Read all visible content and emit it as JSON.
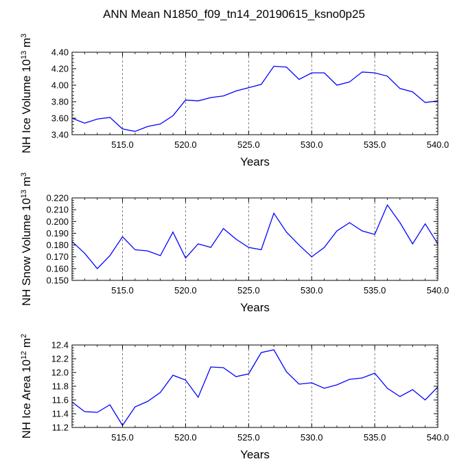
{
  "title": "ANN Mean N1850_f09_tn14_20190615_ksno0p25",
  "colors": {
    "series": "#0000ff",
    "axes": "#000000",
    "grid": "#555555"
  },
  "chart_data": [
    {
      "type": "line",
      "ylabel": {
        "text": "NH Ice Volume 10",
        "exp": "13",
        "unit": " m",
        "unit_exp": "3"
      },
      "xlabel": "Years",
      "x": [
        511,
        512,
        513,
        514,
        515,
        516,
        517,
        518,
        519,
        520,
        521,
        522,
        523,
        524,
        525,
        526,
        527,
        528,
        529,
        530,
        531,
        532,
        533,
        534,
        535,
        536,
        537,
        538,
        539,
        540
      ],
      "values": [
        3.6,
        3.54,
        3.59,
        3.61,
        3.47,
        3.44,
        3.5,
        3.53,
        3.63,
        3.82,
        3.81,
        3.85,
        3.87,
        3.93,
        3.97,
        4.01,
        4.23,
        4.22,
        4.07,
        4.15,
        4.15,
        4.0,
        4.04,
        4.16,
        4.15,
        4.11,
        3.96,
        3.92,
        3.79,
        3.81
      ],
      "xlim": [
        511,
        540
      ],
      "ylim": [
        3.4,
        4.4
      ],
      "yticks": [
        "3.40",
        "3.60",
        "3.80",
        "4.00",
        "4.20",
        "4.40"
      ],
      "xticks": [
        "515.0",
        "520.0",
        "525.0",
        "530.0",
        "535.0",
        "540.0"
      ],
      "grid_x": [
        515,
        520,
        525,
        530,
        535
      ]
    },
    {
      "type": "line",
      "ylabel": {
        "text": "NH Snow Volume 10",
        "exp": "13",
        "unit": " m",
        "unit_exp": "3"
      },
      "xlabel": "Years",
      "x": [
        511,
        512,
        513,
        514,
        515,
        516,
        517,
        518,
        519,
        520,
        521,
        522,
        523,
        524,
        525,
        526,
        527,
        528,
        529,
        530,
        531,
        532,
        533,
        534,
        535,
        536,
        537,
        538,
        539,
        540
      ],
      "values": [
        0.183,
        0.173,
        0.16,
        0.171,
        0.187,
        0.176,
        0.175,
        0.171,
        0.191,
        0.169,
        0.181,
        0.178,
        0.194,
        0.185,
        0.178,
        0.176,
        0.207,
        0.191,
        0.18,
        0.17,
        0.178,
        0.192,
        0.199,
        0.192,
        0.189,
        0.214,
        0.199,
        0.181,
        0.198,
        0.181
      ],
      "xlim": [
        511,
        540
      ],
      "ylim": [
        0.15,
        0.22
      ],
      "yticks": [
        "0.150",
        "0.160",
        "0.170",
        "0.180",
        "0.190",
        "0.200",
        "0.210",
        "0.220"
      ],
      "xticks": [
        "515.0",
        "520.0",
        "525.0",
        "530.0",
        "535.0",
        "540.0"
      ],
      "grid_x": [
        515,
        520,
        525,
        530,
        535
      ]
    },
    {
      "type": "line",
      "ylabel": {
        "text": "NH Ice Area 10",
        "exp": "12",
        "unit": " m",
        "unit_exp": "2"
      },
      "xlabel": "Years",
      "x": [
        511,
        512,
        513,
        514,
        515,
        516,
        517,
        518,
        519,
        520,
        521,
        522,
        523,
        524,
        525,
        526,
        527,
        528,
        529,
        530,
        531,
        532,
        533,
        534,
        535,
        536,
        537,
        538,
        539,
        540
      ],
      "values": [
        11.57,
        11.43,
        11.42,
        11.53,
        11.23,
        11.5,
        11.58,
        11.71,
        11.96,
        11.89,
        11.64,
        12.08,
        12.07,
        11.94,
        11.98,
        12.29,
        12.33,
        12.01,
        11.83,
        11.85,
        11.77,
        11.82,
        11.9,
        11.92,
        11.99,
        11.77,
        11.65,
        11.75,
        11.6,
        11.79
      ],
      "xlim": [
        511,
        540
      ],
      "ylim": [
        11.2,
        12.4
      ],
      "yticks": [
        "11.2",
        "11.4",
        "11.6",
        "11.8",
        "12.0",
        "12.2",
        "12.4"
      ],
      "xticks": [
        "515.0",
        "520.0",
        "525.0",
        "530.0",
        "535.0",
        "540.0"
      ],
      "grid_x": [
        515,
        520,
        525,
        530,
        535
      ]
    }
  ]
}
